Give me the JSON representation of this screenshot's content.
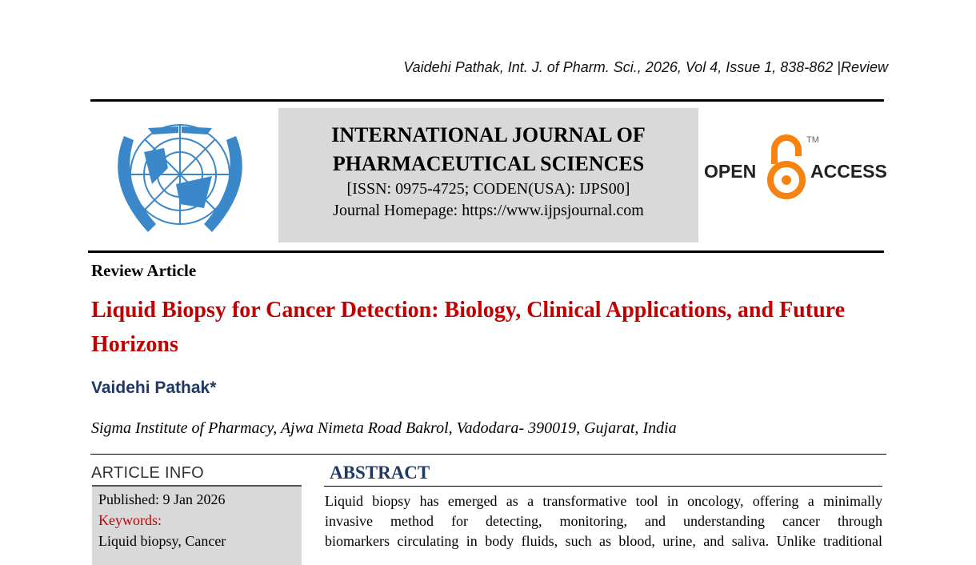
{
  "header": {
    "citation": "Vaidehi Pathak, Int. J. of Pharm. Sci., 2026, Vol 4, Issue 1, 838-862 |Review"
  },
  "journal": {
    "name_line1": "INTERNATIONAL JOURNAL OF",
    "name_line2": "PHARMACEUTICAL SCIENCES",
    "issn": "[ISSN: 0975-4725; CODEN(USA): IJPS00]",
    "homepage": "Journal Homepage: https://www.ijpsjournal.com"
  },
  "open_access": {
    "left": "OPEN",
    "right": "ACCESS",
    "tm": "TM",
    "color": "#f68212"
  },
  "article": {
    "type": "Review Article",
    "title": "Liquid Biopsy for Cancer Detection: Biology, Clinical Applications, and Future Horizons",
    "author": "Vaidehi Pathak*",
    "affiliation": "Sigma Institute of Pharmacy, Ajwa Nimeta Road Bakrol, Vadodara- 390019, Gujarat, India"
  },
  "info": {
    "heading": "ARTICLE INFO",
    "published": "Published:  9 Jan 2026",
    "keywords_label": "Keywords:",
    "keywords": "Liquid biopsy, Cancer"
  },
  "abstract": {
    "heading": "ABSTRACT",
    "lines": [
      "Liquid biopsy has emerged as a transformative tool in oncology, offering a minimally",
      "invasive method for detecting, monitoring, and understanding cancer through",
      "biomarkers circulating in body fluids, such as blood, urine, and saliva. Unlike traditional"
    ]
  },
  "colors": {
    "title": "#c00000",
    "navy": "#1f3864",
    "logo_blue": "#3a87c9"
  }
}
